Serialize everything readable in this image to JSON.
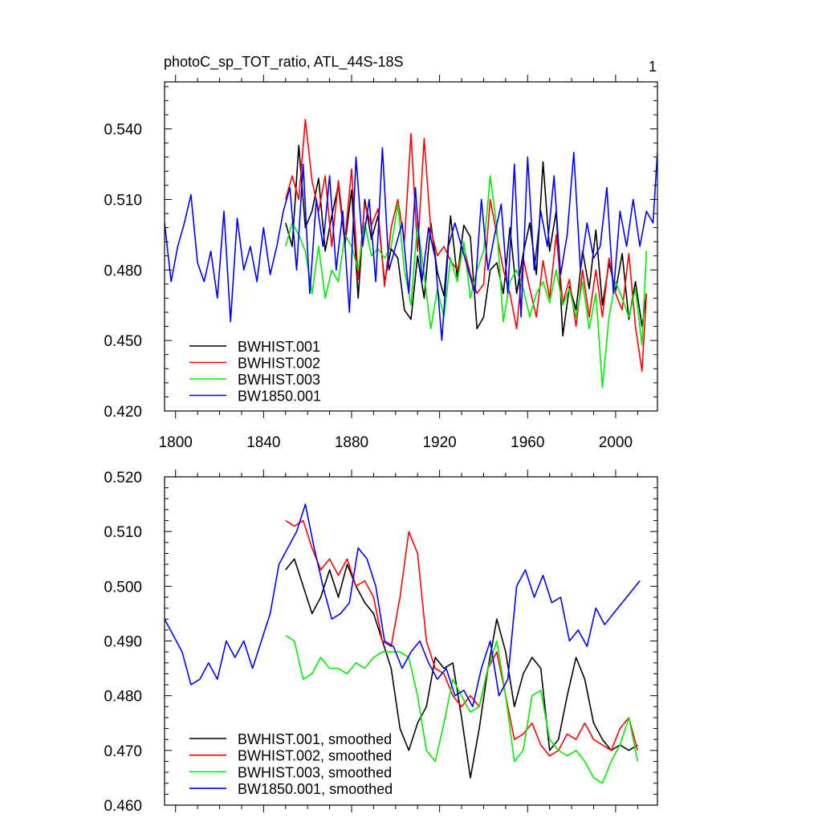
{
  "figure": {
    "panel_number": "1"
  },
  "chart_data": [
    {
      "type": "line",
      "title": "photoC_sp_TOT_ratio, ATL_44S-18S",
      "xlabel": "",
      "ylabel": "",
      "xlim": [
        1795,
        2019
      ],
      "ylim": [
        0.42,
        0.56
      ],
      "xticks": [
        1800,
        1840,
        1880,
        1920,
        1960,
        2000
      ],
      "xtick_labels": [
        "1800",
        "1840",
        "1880",
        "1920",
        "1960",
        "2000"
      ],
      "yticks": [
        0.42,
        0.45,
        0.48,
        0.51,
        0.54
      ],
      "ytick_labels": [
        "0.420",
        "0.450",
        "0.480",
        "0.510",
        "0.540"
      ],
      "grid": false,
      "legend_position": "bottom-left",
      "series": [
        {
          "name": "BWHIST.001",
          "color": "#000000",
          "x": [
            1850,
            1853,
            1856,
            1859,
            1862,
            1865,
            1868,
            1871,
            1874,
            1877,
            1880,
            1883,
            1886,
            1889,
            1892,
            1895,
            1898,
            1901,
            1904,
            1907,
            1910,
            1913,
            1916,
            1919,
            1922,
            1925,
            1928,
            1931,
            1934,
            1937,
            1940,
            1943,
            1946,
            1949,
            1952,
            1955,
            1958,
            1961,
            1964,
            1967,
            1970,
            1973,
            1976,
            1979,
            1982,
            1985,
            1988,
            1991,
            1994,
            1997,
            2000,
            2003,
            2006,
            2009,
            2012,
            2014
          ],
          "values": [
            0.5,
            0.49,
            0.533,
            0.498,
            0.505,
            0.519,
            0.488,
            0.503,
            0.516,
            0.491,
            0.514,
            0.468,
            0.51,
            0.493,
            0.503,
            0.475,
            0.489,
            0.485,
            0.463,
            0.459,
            0.486,
            0.468,
            0.5,
            0.479,
            0.469,
            0.503,
            0.477,
            0.499,
            0.494,
            0.455,
            0.46,
            0.48,
            0.483,
            0.47,
            0.498,
            0.47,
            0.487,
            0.5,
            0.478,
            0.526,
            0.488,
            0.505,
            0.452,
            0.473,
            0.463,
            0.488,
            0.472,
            0.497,
            0.465,
            0.483,
            0.471,
            0.487,
            0.459,
            0.475,
            0.456,
            0.47
          ]
        },
        {
          "name": "BWHIST.002",
          "color": "#ff0000",
          "x": [
            1850,
            1853,
            1856,
            1859,
            1862,
            1865,
            1868,
            1871,
            1874,
            1877,
            1880,
            1883,
            1886,
            1889,
            1892,
            1895,
            1898,
            1901,
            1904,
            1907,
            1910,
            1913,
            1916,
            1919,
            1922,
            1925,
            1928,
            1931,
            1934,
            1937,
            1940,
            1943,
            1946,
            1949,
            1952,
            1955,
            1958,
            1961,
            1964,
            1967,
            1970,
            1973,
            1976,
            1979,
            1982,
            1985,
            1988,
            1991,
            1994,
            1997,
            2000,
            2003,
            2006,
            2009,
            2012,
            2014
          ],
          "values": [
            0.51,
            0.52,
            0.51,
            0.544,
            0.518,
            0.505,
            0.52,
            0.49,
            0.518,
            0.493,
            0.523,
            0.476,
            0.508,
            0.499,
            0.506,
            0.473,
            0.498,
            0.51,
            0.492,
            0.538,
            0.488,
            0.536,
            0.497,
            0.486,
            0.49,
            0.484,
            0.48,
            0.49,
            0.478,
            0.47,
            0.474,
            0.51,
            0.495,
            0.48,
            0.47,
            0.455,
            0.485,
            0.472,
            0.46,
            0.484,
            0.468,
            0.495,
            0.466,
            0.476,
            0.456,
            0.48,
            0.46,
            0.48,
            0.46,
            0.485,
            0.47,
            0.463,
            0.487,
            0.456,
            0.437,
            0.47
          ]
        },
        {
          "name": "BWHIST.003",
          "color": "#00ee00",
          "x": [
            1850,
            1853,
            1856,
            1859,
            1862,
            1865,
            1868,
            1871,
            1874,
            1877,
            1880,
            1883,
            1886,
            1889,
            1892,
            1895,
            1898,
            1901,
            1904,
            1907,
            1910,
            1913,
            1916,
            1919,
            1922,
            1925,
            1928,
            1931,
            1934,
            1937,
            1940,
            1943,
            1946,
            1949,
            1952,
            1955,
            1958,
            1961,
            1964,
            1967,
            1970,
            1973,
            1976,
            1979,
            1982,
            1985,
            1988,
            1991,
            1994,
            1997,
            2000,
            2003,
            2006,
            2009,
            2012,
            2014
          ],
          "values": [
            0.49,
            0.5,
            0.495,
            0.488,
            0.47,
            0.49,
            0.468,
            0.48,
            0.475,
            0.495,
            0.49,
            0.48,
            0.5,
            0.486,
            0.489,
            0.485,
            0.49,
            0.508,
            0.48,
            0.465,
            0.5,
            0.478,
            0.455,
            0.472,
            0.46,
            0.485,
            0.475,
            0.492,
            0.468,
            0.48,
            0.488,
            0.52,
            0.498,
            0.458,
            0.475,
            0.48,
            0.472,
            0.46,
            0.47,
            0.475,
            0.466,
            0.48,
            0.465,
            0.472,
            0.46,
            0.475,
            0.455,
            0.47,
            0.43,
            0.46,
            0.475,
            0.468,
            0.46,
            0.472,
            0.448,
            0.488
          ]
        },
        {
          "name": "BW1850.001",
          "color": "#0000ff",
          "x": [
            1795,
            1798,
            1801,
            1804,
            1807,
            1810,
            1813,
            1816,
            1819,
            1822,
            1825,
            1828,
            1831,
            1834,
            1837,
            1840,
            1843,
            1846,
            1849,
            1852,
            1855,
            1858,
            1861,
            1864,
            1867,
            1870,
            1873,
            1876,
            1879,
            1882,
            1885,
            1888,
            1891,
            1894,
            1897,
            1900,
            1903,
            1906,
            1909,
            1912,
            1915,
            1918,
            1921,
            1924,
            1927,
            1930,
            1933,
            1936,
            1939,
            1942,
            1945,
            1948,
            1951,
            1954,
            1957,
            1960,
            1963,
            1966,
            1969,
            1972,
            1975,
            1978,
            1981,
            1984,
            1987,
            1990,
            1993,
            1996,
            1999,
            2002,
            2005,
            2008,
            2011,
            2014,
            2017,
            2019
          ],
          "values": [
            0.5,
            0.475,
            0.49,
            0.5,
            0.512,
            0.483,
            0.475,
            0.488,
            0.468,
            0.505,
            0.458,
            0.502,
            0.48,
            0.49,
            0.475,
            0.498,
            0.478,
            0.49,
            0.505,
            0.515,
            0.48,
            0.525,
            0.47,
            0.51,
            0.49,
            0.52,
            0.48,
            0.505,
            0.462,
            0.528,
            0.49,
            0.51,
            0.475,
            0.532,
            0.48,
            0.49,
            0.5,
            0.47,
            0.515,
            0.475,
            0.498,
            0.485,
            0.45,
            0.49,
            0.5,
            0.49,
            0.48,
            0.47,
            0.51,
            0.48,
            0.495,
            0.508,
            0.47,
            0.525,
            0.46,
            0.528,
            0.48,
            0.505,
            0.49,
            0.52,
            0.478,
            0.495,
            0.53,
            0.48,
            0.5,
            0.485,
            0.49,
            0.515,
            0.47,
            0.505,
            0.49,
            0.51,
            0.49,
            0.505,
            0.5,
            0.53
          ]
        }
      ]
    },
    {
      "type": "line",
      "title": "",
      "xlabel": "",
      "ylabel": "",
      "xlim": [
        1795,
        2019
      ],
      "ylim": [
        0.46,
        0.52
      ],
      "xticks": [
        1800,
        1840,
        1880,
        1920,
        1960,
        2000
      ],
      "xtick_labels": [],
      "yticks": [
        0.46,
        0.47,
        0.48,
        0.49,
        0.5,
        0.51,
        0.52
      ],
      "ytick_labels": [
        "0.460",
        "0.470",
        "0.480",
        "0.490",
        "0.500",
        "0.510",
        "0.520"
      ],
      "grid": false,
      "legend_position": "bottom-left",
      "series": [
        {
          "name": "BWHIST.001, smoothed",
          "color": "#000000",
          "x": [
            1850,
            1854,
            1858,
            1862,
            1866,
            1870,
            1874,
            1878,
            1882,
            1886,
            1890,
            1894,
            1898,
            1902,
            1906,
            1910,
            1914,
            1918,
            1922,
            1926,
            1930,
            1934,
            1938,
            1942,
            1946,
            1950,
            1954,
            1958,
            1962,
            1966,
            1970,
            1974,
            1978,
            1982,
            1986,
            1990,
            1994,
            1998,
            2002,
            2006,
            2010
          ],
          "values": [
            0.503,
            0.505,
            0.5,
            0.495,
            0.498,
            0.503,
            0.498,
            0.504,
            0.5,
            0.497,
            0.495,
            0.49,
            0.485,
            0.474,
            0.47,
            0.475,
            0.478,
            0.487,
            0.485,
            0.486,
            0.476,
            0.465,
            0.474,
            0.485,
            0.494,
            0.488,
            0.478,
            0.484,
            0.487,
            0.485,
            0.47,
            0.472,
            0.48,
            0.487,
            0.483,
            0.475,
            0.472,
            0.47,
            0.471,
            0.47,
            0.471
          ]
        },
        {
          "name": "BWHIST.002, smoothed",
          "color": "#ff0000",
          "x": [
            1850,
            1854,
            1858,
            1862,
            1866,
            1870,
            1874,
            1878,
            1882,
            1886,
            1890,
            1894,
            1898,
            1902,
            1906,
            1910,
            1914,
            1918,
            1922,
            1926,
            1930,
            1934,
            1938,
            1942,
            1946,
            1950,
            1954,
            1958,
            1962,
            1966,
            1970,
            1974,
            1978,
            1982,
            1986,
            1990,
            1994,
            1998,
            2002,
            2006,
            2010
          ],
          "values": [
            0.512,
            0.511,
            0.512,
            0.507,
            0.503,
            0.505,
            0.502,
            0.505,
            0.5,
            0.501,
            0.498,
            0.49,
            0.489,
            0.498,
            0.51,
            0.506,
            0.49,
            0.485,
            0.484,
            0.48,
            0.478,
            0.48,
            0.478,
            0.485,
            0.488,
            0.48,
            0.472,
            0.473,
            0.475,
            0.471,
            0.469,
            0.47,
            0.473,
            0.472,
            0.475,
            0.472,
            0.471,
            0.47,
            0.474,
            0.476,
            0.47
          ]
        },
        {
          "name": "BWHIST.003, smoothed",
          "color": "#00ee00",
          "x": [
            1850,
            1854,
            1858,
            1862,
            1866,
            1870,
            1874,
            1878,
            1882,
            1886,
            1890,
            1894,
            1898,
            1902,
            1906,
            1910,
            1914,
            1918,
            1922,
            1926,
            1930,
            1934,
            1938,
            1942,
            1946,
            1950,
            1954,
            1958,
            1962,
            1966,
            1970,
            1974,
            1978,
            1982,
            1986,
            1990,
            1994,
            1998,
            2002,
            2006,
            2010
          ],
          "values": [
            0.491,
            0.49,
            0.483,
            0.484,
            0.487,
            0.485,
            0.485,
            0.484,
            0.486,
            0.485,
            0.487,
            0.488,
            0.488,
            0.488,
            0.487,
            0.48,
            0.47,
            0.468,
            0.475,
            0.483,
            0.48,
            0.477,
            0.478,
            0.485,
            0.49,
            0.48,
            0.468,
            0.47,
            0.48,
            0.481,
            0.472,
            0.47,
            0.469,
            0.47,
            0.468,
            0.465,
            0.464,
            0.468,
            0.471,
            0.476,
            0.468
          ]
        },
        {
          "name": "BW1850.001, smoothed",
          "color": "#0000ff",
          "x": [
            1795,
            1799,
            1803,
            1807,
            1811,
            1815,
            1819,
            1823,
            1827,
            1831,
            1835,
            1839,
            1843,
            1847,
            1851,
            1855,
            1859,
            1863,
            1867,
            1871,
            1875,
            1879,
            1883,
            1887,
            1891,
            1895,
            1899,
            1903,
            1907,
            1911,
            1915,
            1919,
            1923,
            1927,
            1931,
            1935,
            1939,
            1943,
            1947,
            1951,
            1955,
            1959,
            1963,
            1967,
            1971,
            1975,
            1979,
            1983,
            1987,
            1991,
            1995,
            1999,
            2003,
            2007,
            2011
          ],
          "values": [
            0.494,
            0.491,
            0.488,
            0.482,
            0.483,
            0.486,
            0.483,
            0.49,
            0.487,
            0.49,
            0.485,
            0.49,
            0.495,
            0.504,
            0.507,
            0.51,
            0.515,
            0.507,
            0.5,
            0.494,
            0.495,
            0.497,
            0.507,
            0.505,
            0.5,
            0.49,
            0.489,
            0.485,
            0.488,
            0.49,
            0.486,
            0.483,
            0.485,
            0.48,
            0.481,
            0.478,
            0.485,
            0.49,
            0.48,
            0.483,
            0.5,
            0.503,
            0.498,
            0.502,
            0.497,
            0.498,
            0.49,
            0.492,
            0.489,
            0.496,
            0.493,
            0.495,
            0.497,
            0.499,
            0.501
          ]
        }
      ]
    }
  ]
}
